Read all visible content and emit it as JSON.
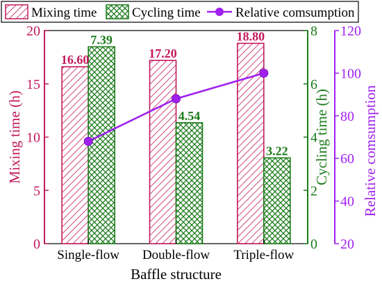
{
  "chart_data": {
    "type": "bar",
    "xlabel": "Baffle structure",
    "categories": [
      "Single-flow",
      "Double-flow",
      "Triple-flow"
    ],
    "legend_position": "top",
    "series": [
      {
        "name": "Mixing time",
        "kind": "bar",
        "axis": "left",
        "values": [
          16.6,
          17.2,
          18.8
        ],
        "labels": [
          "16.60",
          "17.20",
          "18.80"
        ],
        "color": "#c2185b",
        "pattern": "diagonal-hatch"
      },
      {
        "name": "Cycling time",
        "kind": "bar",
        "axis": "right1",
        "values": [
          7.39,
          4.54,
          3.22
        ],
        "labels": [
          "7.39",
          "4.54",
          "3.22"
        ],
        "color": "#1a7a1a",
        "pattern": "cross-hatch"
      },
      {
        "name": "Relative comsumption",
        "kind": "line",
        "axis": "right2",
        "values": [
          68,
          88,
          100
        ],
        "color": "#a020f0",
        "marker": "circle"
      }
    ],
    "axes": {
      "left": {
        "label": "Mixing time (h)",
        "ylim": [
          0,
          20
        ],
        "ticks": [
          0,
          5,
          10,
          15,
          20
        ],
        "color": "#c2185b"
      },
      "right1": {
        "label": "Cycling time (h)",
        "ylim": [
          0,
          8
        ],
        "ticks": [
          0,
          2,
          4,
          6,
          8
        ],
        "color": "#1a7a1a"
      },
      "right2": {
        "label": "Relative comsumption",
        "ylim": [
          20,
          120
        ],
        "ticks": [
          20,
          40,
          60,
          80,
          100,
          120
        ],
        "color": "#a020f0"
      }
    }
  }
}
